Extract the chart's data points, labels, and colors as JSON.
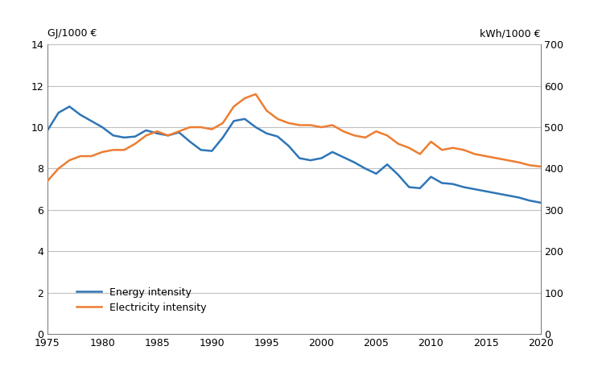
{
  "years": [
    1975,
    1976,
    1977,
    1978,
    1979,
    1980,
    1981,
    1982,
    1983,
    1984,
    1985,
    1986,
    1987,
    1988,
    1989,
    1990,
    1991,
    1992,
    1993,
    1994,
    1995,
    1996,
    1997,
    1998,
    1999,
    2000,
    2001,
    2002,
    2003,
    2004,
    2005,
    2006,
    2007,
    2008,
    2009,
    2010,
    2011,
    2012,
    2013,
    2014,
    2015,
    2016,
    2017,
    2018,
    2019,
    2020
  ],
  "energy_intensity": [
    9.85,
    10.7,
    11.0,
    10.6,
    10.3,
    10.0,
    9.6,
    9.5,
    9.55,
    9.85,
    9.7,
    9.6,
    9.75,
    9.3,
    8.9,
    8.85,
    9.5,
    10.3,
    10.4,
    10.0,
    9.7,
    9.55,
    9.1,
    8.5,
    8.4,
    8.5,
    8.8,
    8.55,
    8.3,
    8.0,
    7.75,
    8.2,
    7.7,
    7.1,
    7.05,
    7.6,
    7.3,
    7.25,
    7.1,
    7.0,
    6.9,
    6.8,
    6.7,
    6.6,
    6.45,
    6.35
  ],
  "electricity_intensity": [
    370,
    400,
    420,
    430,
    430,
    440,
    445,
    445,
    460,
    480,
    490,
    480,
    490,
    500,
    500,
    495,
    510,
    550,
    570,
    580,
    540,
    520,
    510,
    505,
    505,
    500,
    505,
    490,
    480,
    475,
    490,
    480,
    460,
    450,
    435,
    465,
    445,
    450,
    445,
    435,
    430,
    425,
    420,
    415,
    408,
    405
  ],
  "energy_color": "#2E75B6",
  "electricity_color": "#ED7D31",
  "ylim_left": [
    0,
    14
  ],
  "ylim_right": [
    0,
    700
  ],
  "yticks_left": [
    0,
    2,
    4,
    6,
    8,
    10,
    12,
    14
  ],
  "yticks_right": [
    0,
    100,
    200,
    300,
    400,
    500,
    600,
    700
  ],
  "xticks": [
    1975,
    1980,
    1985,
    1990,
    1995,
    2000,
    2005,
    2010,
    2015,
    2020
  ],
  "ylabel_left": "GJ/1000 €",
  "ylabel_right": "kWh/1000 €",
  "legend_labels": [
    "Energy intensity",
    "Electricity intensity"
  ],
  "line_width": 1.8,
  "background_color": "#ffffff",
  "grid_color": "#c0c0c0",
  "spine_color": "#808080",
  "tick_label_size": 9,
  "label_fontsize": 9
}
